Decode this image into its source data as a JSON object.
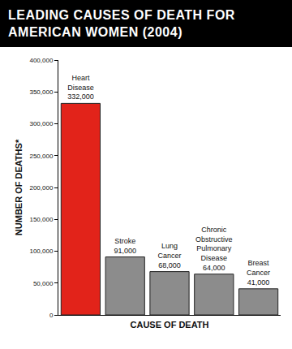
{
  "chart_data": {
    "type": "bar",
    "title": "LEADING CAUSES OF DEATH FOR AMERICAN WOMEN (2004)",
    "x_label": "CAUSE OF DEATH",
    "y_label": "NUMBER OF DEATHS*",
    "categories": [
      "Heart Disease",
      "Stroke",
      "Lung Cancer",
      "Chronic Obstructive Pulmonary Disease",
      "Breast Cancer"
    ],
    "values": [
      332000,
      91000,
      68000,
      64000,
      41000
    ],
    "value_labels": [
      "332,000",
      "91,000",
      "68,000",
      "64,000",
      "41,000"
    ],
    "colors": [
      "#e2231a",
      "#8c8c8c",
      "#8c8c8c",
      "#8c8c8c",
      "#8c8c8c"
    ],
    "ylim": [
      0,
      400000
    ],
    "yticks": [
      0,
      {
        "value": 50000,
        "label": "50,000"
      },
      {
        "value": 100000,
        "label": "100,000"
      },
      {
        "value": 150000,
        "label": "150,000"
      },
      {
        "value": 200000,
        "label": "200,000"
      },
      {
        "value": 250000,
        "label": "250,000"
      },
      {
        "value": 300000,
        "label": "300,000"
      },
      {
        "value": 350000,
        "label": "350,000"
      },
      {
        "value": 400000,
        "label": "400,000"
      }
    ],
    "grid": false,
    "data_labels": true,
    "tick_labels": "y"
  }
}
